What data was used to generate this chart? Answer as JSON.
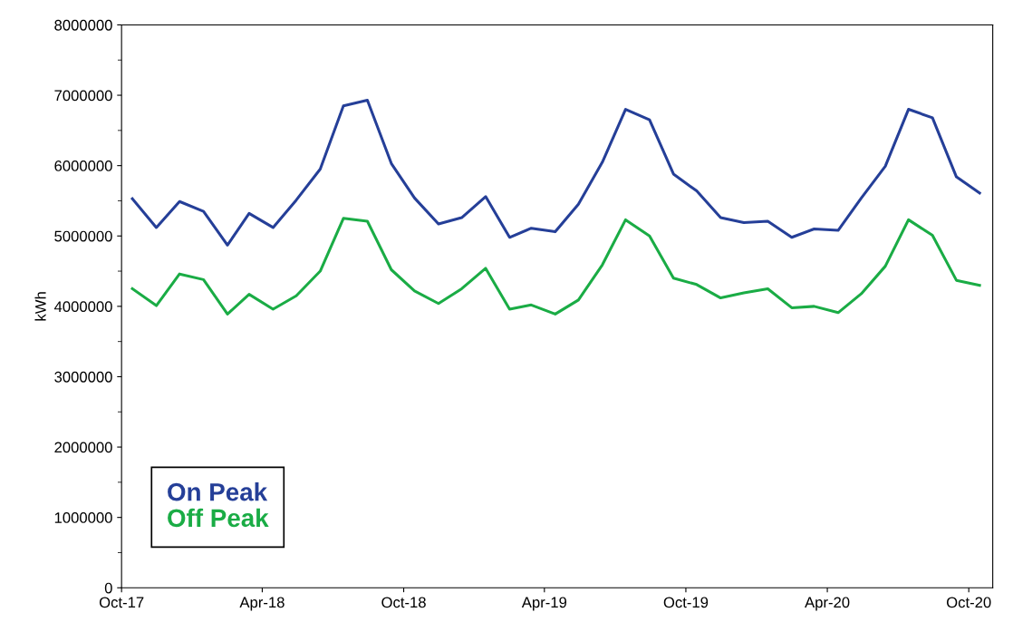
{
  "chart_data": {
    "type": "line",
    "ylabel": "kWh",
    "x": [
      "2017-10-15",
      "2017-11-15",
      "2017-12-15",
      "2018-01-15",
      "2018-02-15",
      "2018-03-15",
      "2018-04-15",
      "2018-05-15",
      "2018-06-15",
      "2018-07-15",
      "2018-08-15",
      "2018-09-15",
      "2018-10-15",
      "2018-11-15",
      "2018-12-15",
      "2019-01-15",
      "2019-02-15",
      "2019-03-15",
      "2019-04-15",
      "2019-05-15",
      "2019-06-15",
      "2019-07-15",
      "2019-08-15",
      "2019-09-15",
      "2019-10-15",
      "2019-11-15",
      "2019-12-15",
      "2020-01-15",
      "2020-02-15",
      "2020-03-15",
      "2020-04-15",
      "2020-05-15",
      "2020-06-15",
      "2020-07-15",
      "2020-08-15",
      "2020-09-15",
      "2020-10-15"
    ],
    "series": [
      {
        "name": "On Peak",
        "color": "#253f98",
        "values": [
          5530000,
          5120000,
          5490000,
          5350000,
          4870000,
          5320000,
          5120000,
          5510000,
          5950000,
          6850000,
          6930000,
          6030000,
          5540000,
          5170000,
          5260000,
          5560000,
          4980000,
          5110000,
          5060000,
          5450000,
          6050000,
          6800000,
          6650000,
          5880000,
          5640000,
          5260000,
          5190000,
          5210000,
          4980000,
          5100000,
          5080000,
          5540000,
          5990000,
          6800000,
          6680000,
          5840000,
          5610000
        ]
      },
      {
        "name": "Off Peak",
        "color": "#1aac45",
        "values": [
          4250000,
          4010000,
          4460000,
          4380000,
          3890000,
          4170000,
          3960000,
          4150000,
          4500000,
          5250000,
          5210000,
          4520000,
          4220000,
          4040000,
          4250000,
          4540000,
          3960000,
          4020000,
          3890000,
          4090000,
          4590000,
          5230000,
          5000000,
          4400000,
          4310000,
          4120000,
          4190000,
          4250000,
          3980000,
          4000000,
          3910000,
          4180000,
          4570000,
          5230000,
          5010000,
          4370000,
          4300000
        ]
      }
    ],
    "xlim": [
      "2017-10",
      "2020-11"
    ],
    "xticks": [
      {
        "value": "2017-10",
        "label": "Oct-17"
      },
      {
        "value": "2018-04",
        "label": "Apr-18"
      },
      {
        "value": "2018-10",
        "label": "Oct-18"
      },
      {
        "value": "2019-04",
        "label": "Apr-19"
      },
      {
        "value": "2019-10",
        "label": "Oct-19"
      },
      {
        "value": "2020-04",
        "label": "Apr-20"
      },
      {
        "value": "2020-10",
        "label": "Oct-20"
      }
    ],
    "ylim": [
      0,
      8000000
    ],
    "yticks": [
      0,
      1000000,
      2000000,
      3000000,
      4000000,
      5000000,
      6000000,
      7000000,
      8000000
    ],
    "legend": "bottom left",
    "marker": "none",
    "line_style": "solid",
    "grid": false
  }
}
